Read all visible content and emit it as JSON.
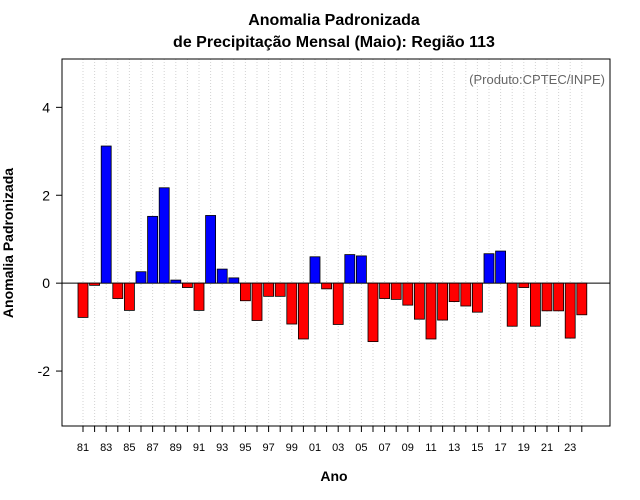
{
  "chart_data": {
    "type": "bar",
    "title_line1": "Anomalia Padronizada",
    "title_line2": "de Precipitação Mensal (Maio): Região 113",
    "xlabel": "Ano",
    "ylabel": "Anomalia Padronizada",
    "credit": "(Produto:CPTEC/INPE)",
    "ylim": [
      -3.25,
      5.1
    ],
    "yticks": [
      -2,
      0,
      2,
      4
    ],
    "ytick_labels": [
      "-2",
      "0",
      "2",
      "4"
    ],
    "grid": "vertical-dotted",
    "colors": {
      "positive": "#0000ff",
      "negative": "#ff0000",
      "border": "#000000",
      "grid": "#d3d3d3"
    },
    "categories": [
      "1981",
      "1982",
      "1983",
      "1984",
      "1985",
      "1986",
      "1987",
      "1988",
      "1989",
      "1990",
      "1991",
      "1992",
      "1993",
      "1994",
      "1995",
      "1996",
      "1997",
      "1998",
      "1999",
      "2000",
      "2001",
      "2002",
      "2003",
      "2004",
      "2005",
      "2006",
      "2007",
      "2008",
      "2009",
      "2010",
      "2011",
      "2012",
      "2013",
      "2014",
      "2015",
      "2016",
      "2017",
      "2018",
      "2019",
      "2020",
      "2021",
      "2022",
      "2023",
      "2024"
    ],
    "values": [
      -0.78,
      -0.05,
      3.12,
      -0.35,
      -0.62,
      0.26,
      1.52,
      2.17,
      0.07,
      -0.1,
      -0.62,
      1.54,
      0.32,
      0.12,
      -0.4,
      -0.85,
      -0.3,
      -0.3,
      -0.93,
      -1.27,
      0.6,
      -0.13,
      -0.94,
      0.65,
      0.62,
      -1.33,
      -0.35,
      -0.37,
      -0.5,
      -0.82,
      -1.27,
      -0.84,
      -0.42,
      -0.52,
      -0.66,
      0.67,
      0.73,
      -0.98,
      -0.1,
      -0.98,
      -0.63,
      -0.63,
      -1.25,
      -0.72
    ],
    "xtick_labels": [
      "81",
      "83",
      "85",
      "87",
      "89",
      "91",
      "93",
      "95",
      "97",
      "99",
      "01",
      "03",
      "05",
      "07",
      "09",
      "11",
      "13",
      "15",
      "17",
      "19",
      "21",
      "23"
    ]
  }
}
